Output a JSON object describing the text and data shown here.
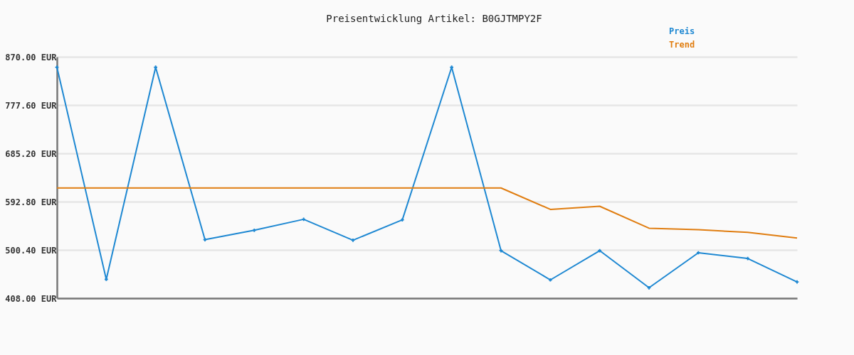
{
  "chart_data": {
    "type": "line",
    "title": "Preisentwicklung Artikel: B0GJTMPY2F",
    "categories": [
      null,
      null,
      null,
      null,
      null,
      null,
      null,
      null,
      null,
      null,
      null,
      null,
      null,
      null,
      null,
      null
    ],
    "series": [
      {
        "name": "Preis",
        "color": "#1e88d2",
        "marker": "cross",
        "values": [
          850,
          444,
          850,
          520,
          538,
          559,
          519,
          558,
          850,
          499,
          443,
          499,
          428,
          495,
          484,
          439
        ]
      },
      {
        "name": "Trend",
        "color": "#e07d10",
        "values": [
          619,
          619,
          619,
          619,
          619,
          619,
          619,
          619,
          619,
          619,
          578,
          584,
          542,
          539,
          534,
          523
        ]
      }
    ],
    "ylim": [
      408,
      870
    ],
    "yticks": [
      {
        "value": 408,
        "label": "408.00 EUR"
      },
      {
        "value": 500.4,
        "label": "500.40 EUR"
      },
      {
        "value": 592.8,
        "label": "592.80 EUR"
      },
      {
        "value": 685.2,
        "label": "685.20 EUR"
      },
      {
        "value": 777.6,
        "label": "777.60 EUR"
      },
      {
        "value": 870,
        "label": "870.00 EUR"
      }
    ],
    "grid": "y",
    "legend": "top right",
    "tick_labels": "y"
  }
}
